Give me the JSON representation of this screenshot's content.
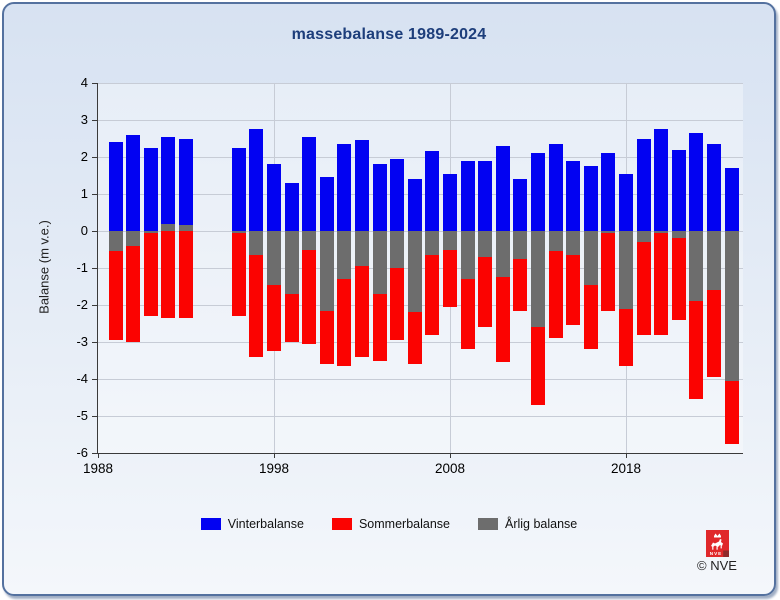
{
  "chart_data": {
    "type": "bar",
    "title": "massebalanse 1989-2024",
    "xlabel": "",
    "ylabel": "Balanse (m v.e.)",
    "ylim": [
      -6,
      4
    ],
    "y_ticks": [
      4,
      3,
      2,
      1,
      0,
      -1,
      -2,
      -3,
      -4,
      -5,
      -6
    ],
    "x_ticks": [
      1988,
      1998,
      2008,
      2018
    ],
    "grid": true,
    "legend_position": "bottom",
    "missing_years": [
      1994,
      1995
    ],
    "years": [
      1989,
      1990,
      1991,
      1992,
      1993,
      1996,
      1997,
      1998,
      1999,
      2000,
      2001,
      2002,
      2003,
      2004,
      2005,
      2006,
      2007,
      2008,
      2009,
      2010,
      2011,
      2012,
      2013,
      2014,
      2015,
      2016,
      2017,
      2018,
      2019,
      2020,
      2021,
      2022,
      2023,
      2024
    ],
    "series": [
      {
        "name": "Vinterbalanse",
        "color": "#0202f2",
        "values": [
          2.4,
          2.6,
          2.25,
          2.55,
          2.5,
          2.25,
          2.75,
          1.8,
          1.3,
          2.55,
          1.45,
          2.35,
          2.45,
          1.8,
          1.95,
          1.4,
          2.15,
          1.55,
          1.9,
          1.9,
          2.3,
          1.4,
          2.1,
          2.35,
          1.9,
          1.75,
          2.1,
          1.55,
          2.5,
          2.75,
          2.2,
          2.65,
          2.35,
          1.7
        ]
      },
      {
        "name": "Sommerbalanse",
        "color": "#fb0301",
        "values": [
          -2.95,
          -3.0,
          -2.3,
          -2.35,
          -2.35,
          -2.3,
          -3.4,
          -3.25,
          -3.0,
          -3.05,
          -3.6,
          -3.65,
          -3.4,
          -3.5,
          -2.95,
          -3.6,
          -2.8,
          -2.05,
          -3.2,
          -2.6,
          -3.55,
          -2.15,
          -4.7,
          -2.9,
          -2.55,
          -3.2,
          -2.15,
          -3.65,
          -2.8,
          -2.8,
          -2.4,
          -4.55,
          -3.95,
          -5.75
        ]
      },
      {
        "name": "Årlig balanse",
        "color": "#6d6d6d",
        "values": [
          -0.55,
          -0.4,
          -0.05,
          0.2,
          0.15,
          -0.05,
          -0.65,
          -1.45,
          -1.7,
          -0.5,
          -2.15,
          -1.3,
          -0.95,
          -1.7,
          -1.0,
          -2.2,
          -0.65,
          -0.5,
          -1.3,
          -0.7,
          -1.25,
          -0.75,
          -2.6,
          -0.55,
          -0.65,
          -1.45,
          -0.05,
          -2.1,
          -0.3,
          -0.05,
          -0.2,
          -1.9,
          -1.6,
          -4.05
        ]
      }
    ]
  },
  "footer": {
    "copyright": "© NVE",
    "logo_text": "NVE"
  },
  "theme": {
    "card_border": "#54719f",
    "title_color": "#1d3e7b",
    "gridline_color": "#c7ccd6",
    "axis_color": "#3a3a3a",
    "logo_red": "#e0282a",
    "logo_dark_red": "#8e2a2c"
  }
}
